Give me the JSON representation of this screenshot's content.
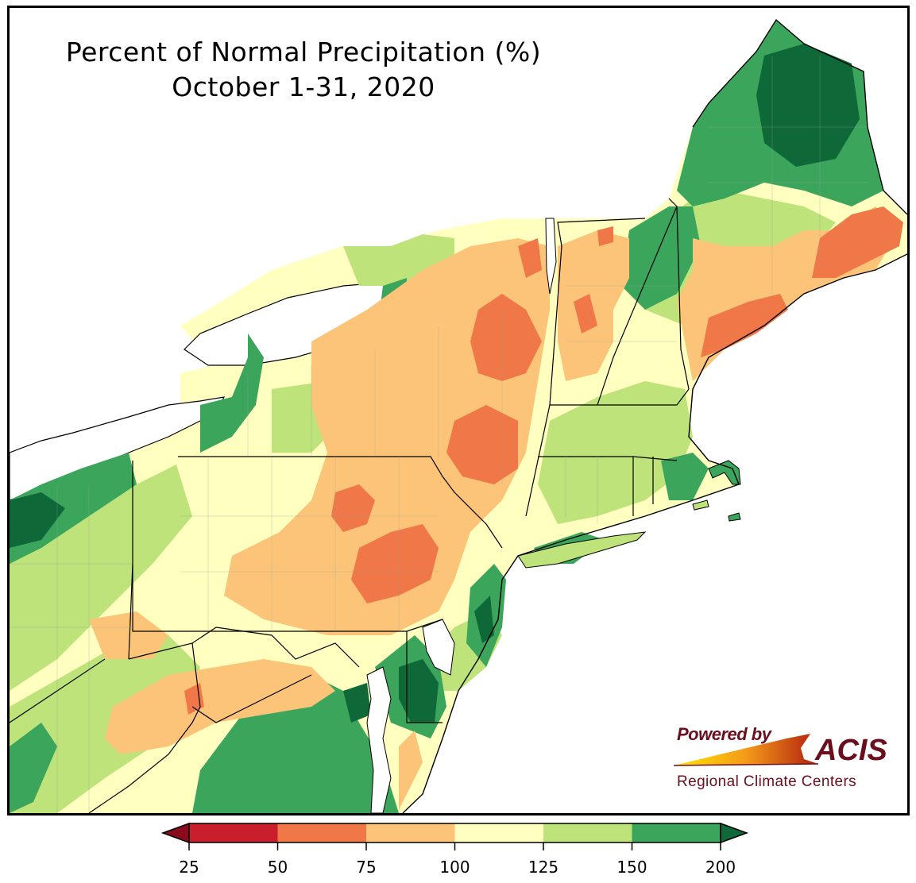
{
  "title": {
    "line1": "Percent of Normal Precipitation (%)",
    "line2": "October 1-31, 2020"
  },
  "logo": {
    "powered_by": "Powered by",
    "acis": "ACIS",
    "regional": "Regional Climate Centers"
  },
  "legend": {
    "ticks": [
      "25",
      "50",
      "75",
      "100",
      "125",
      "150",
      "200"
    ],
    "bins": [
      {
        "range": "<25",
        "color": "#8b0a1e"
      },
      {
        "range": "25-50",
        "color": "#c91e2c"
      },
      {
        "range": "50-75",
        "color": "#f07848"
      },
      {
        "range": "75-100",
        "color": "#fcc478"
      },
      {
        "range": "100-125",
        "color": "#ffffc0"
      },
      {
        "range": "125-150",
        "color": "#bee37a"
      },
      {
        "range": "150-200",
        "color": "#3ba55c"
      },
      {
        "range": ">200",
        "color": "#0e6837"
      }
    ]
  },
  "map": {
    "region": "Northeast US",
    "land_base_color": "#ffffc0",
    "water_color": "#ffffff",
    "border_color": "#000000"
  }
}
